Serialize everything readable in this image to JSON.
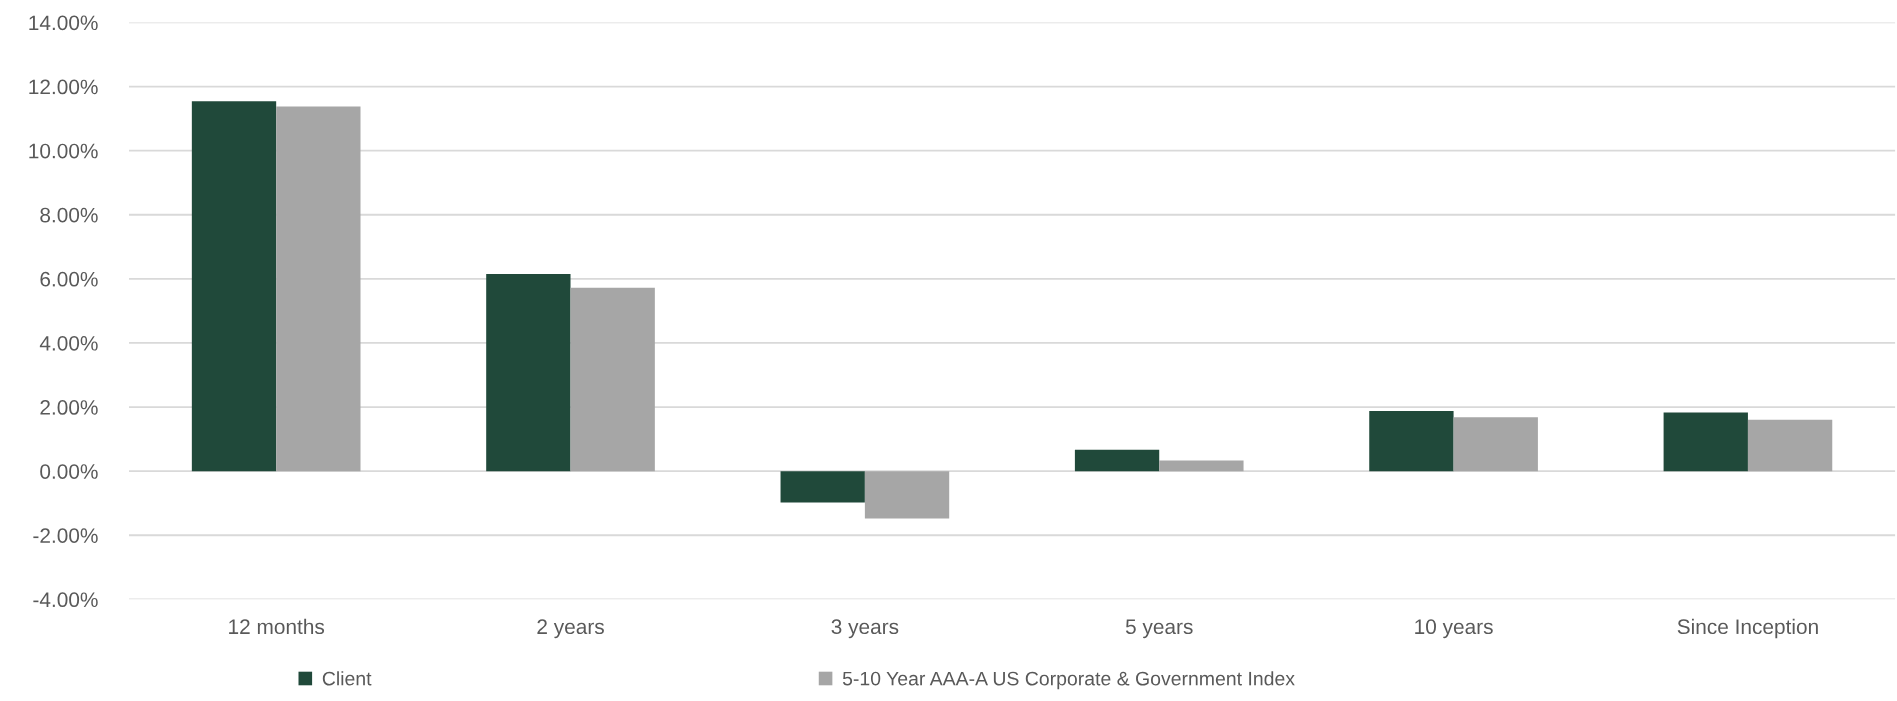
{
  "chart_data": {
    "type": "bar",
    "categories": [
      "12 months",
      "2 years",
      "3 years",
      "5 years",
      "10 years",
      "Since Inception"
    ],
    "series": [
      {
        "name": "Client",
        "color": "#20493a",
        "values": [
          11.54,
          6.15,
          -0.98,
          0.67,
          1.88,
          1.83
        ]
      },
      {
        "name": "5-10 Year AAA-A US Corporate & Government Index",
        "color": "#a6a6a6",
        "values": [
          11.38,
          5.72,
          -1.48,
          0.33,
          1.68,
          1.6
        ]
      }
    ],
    "ylim": [
      -4,
      14
    ],
    "yticks": [
      {
        "value": -4,
        "label": "-4.00%"
      },
      {
        "value": -2,
        "label": "-2.00%"
      },
      {
        "value": 0,
        "label": "0.00%"
      },
      {
        "value": 2,
        "label": "2.00%"
      },
      {
        "value": 4,
        "label": "4.00%"
      },
      {
        "value": 6,
        "label": "6.00%"
      },
      {
        "value": 8,
        "label": "8.00%"
      },
      {
        "value": 10,
        "label": "10.00%"
      },
      {
        "value": 12,
        "label": "12.00%"
      },
      {
        "value": 14,
        "label": "14.00%"
      }
    ],
    "grid": "y",
    "legend": "bottom"
  }
}
